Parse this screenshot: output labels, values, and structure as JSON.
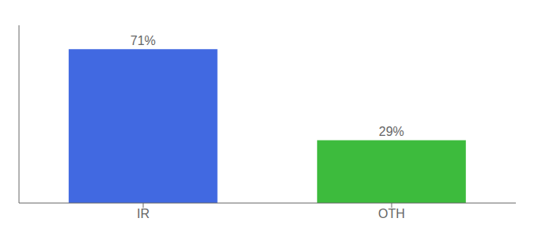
{
  "chart_data": {
    "type": "bar",
    "categories": [
      "IR",
      "OTH"
    ],
    "values": [
      71,
      29
    ],
    "value_labels": [
      "71%",
      "29%"
    ],
    "data_labels": true,
    "colors": [
      "#4169e1",
      "#3dbb3d"
    ],
    "ylim": [
      0,
      82
    ],
    "tick_labels": "x",
    "grid": false
  }
}
